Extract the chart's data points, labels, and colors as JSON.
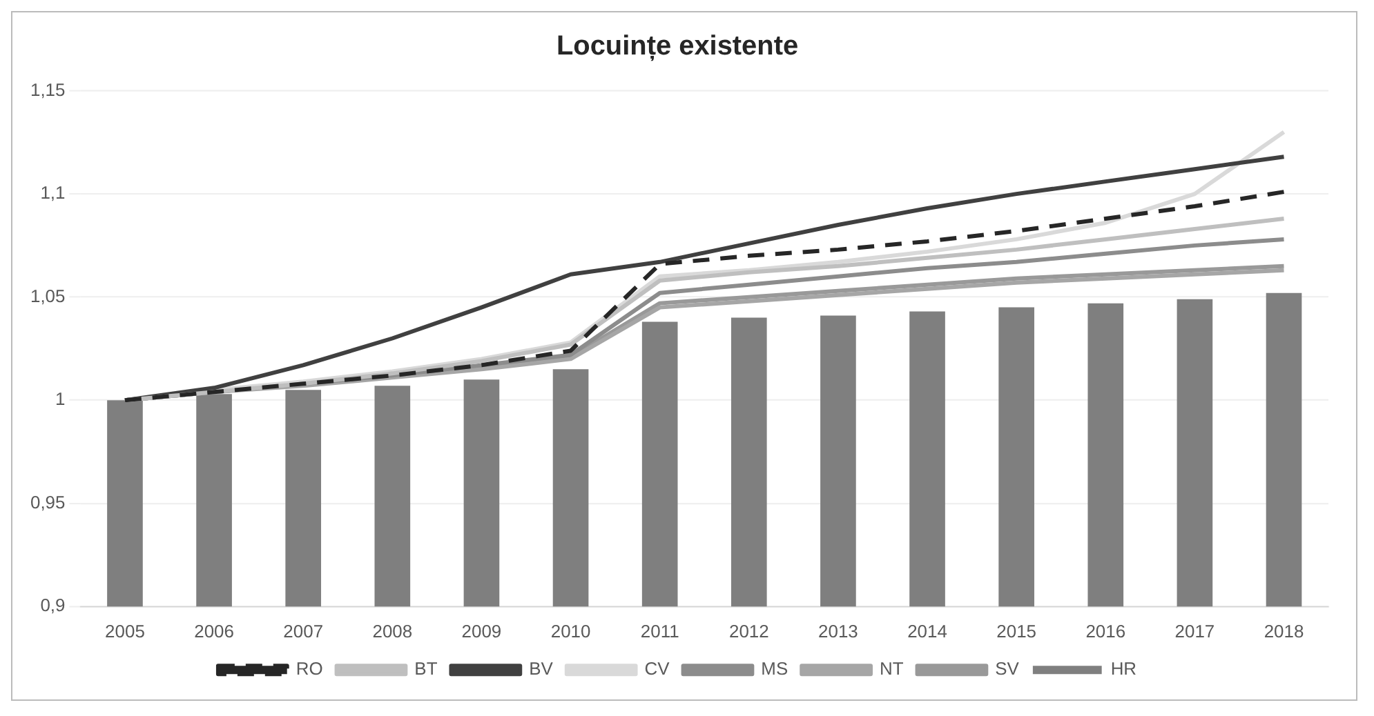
{
  "chart_data": {
    "type": "line",
    "title": "Locuințe existente",
    "categories": [
      "2005",
      "2006",
      "2007",
      "2008",
      "2009",
      "2010",
      "2011",
      "2012",
      "2013",
      "2014",
      "2015",
      "2016",
      "2017",
      "2018"
    ],
    "series": [
      {
        "name": "HR",
        "type": "bar",
        "color": "#7f7f7f",
        "values": [
          1.0,
          1.003,
          1.005,
          1.007,
          1.01,
          1.015,
          1.038,
          1.04,
          1.041,
          1.043,
          1.045,
          1.047,
          1.049,
          1.052
        ]
      },
      {
        "name": "RO",
        "color": "#262626",
        "line_style": "dashed",
        "values": [
          1.0,
          1.004,
          1.008,
          1.012,
          1.017,
          1.024,
          1.066,
          1.07,
          1.073,
          1.077,
          1.082,
          1.088,
          1.094,
          1.101
        ]
      },
      {
        "name": "BT",
        "color": "#bfbfbf",
        "values": [
          1.0,
          1.004,
          1.008,
          1.013,
          1.019,
          1.027,
          1.058,
          1.062,
          1.065,
          1.069,
          1.073,
          1.078,
          1.083,
          1.088
        ]
      },
      {
        "name": "BV",
        "color": "#404040",
        "values": [
          1.0,
          1.006,
          1.017,
          1.03,
          1.045,
          1.061,
          1.067,
          1.076,
          1.085,
          1.093,
          1.1,
          1.106,
          1.112,
          1.118
        ]
      },
      {
        "name": "CV",
        "color": "#d9d9d9",
        "values": [
          1.0,
          1.005,
          1.009,
          1.014,
          1.02,
          1.028,
          1.06,
          1.063,
          1.067,
          1.072,
          1.078,
          1.086,
          1.1,
          1.13
        ]
      },
      {
        "name": "MS",
        "color": "#8c8c8c",
        "values": [
          1.0,
          1.004,
          1.008,
          1.012,
          1.017,
          1.022,
          1.052,
          1.056,
          1.06,
          1.064,
          1.067,
          1.071,
          1.075,
          1.078
        ]
      },
      {
        "name": "NT",
        "color": "#a6a6a6",
        "values": [
          1.0,
          1.004,
          1.007,
          1.011,
          1.015,
          1.02,
          1.045,
          1.048,
          1.051,
          1.054,
          1.057,
          1.059,
          1.061,
          1.063
        ]
      },
      {
        "name": "SV",
        "color": "#999999",
        "values": [
          1.0,
          1.004,
          1.008,
          1.012,
          1.016,
          1.021,
          1.047,
          1.05,
          1.053,
          1.056,
          1.059,
          1.061,
          1.063,
          1.065
        ]
      }
    ],
    "ylim": [
      0.9,
      1.15
    ],
    "yticks": [
      {
        "value": 0.9,
        "label": "0,9"
      },
      {
        "value": 0.95,
        "label": "0,95"
      },
      1,
      {
        "value": 1.05,
        "label": "1,05"
      },
      {
        "value": 1.1,
        "label": "1,1"
      },
      {
        "value": 1.15,
        "label": "1,15"
      }
    ],
    "grid": "y",
    "legend": "bottom",
    "marker": "none"
  }
}
